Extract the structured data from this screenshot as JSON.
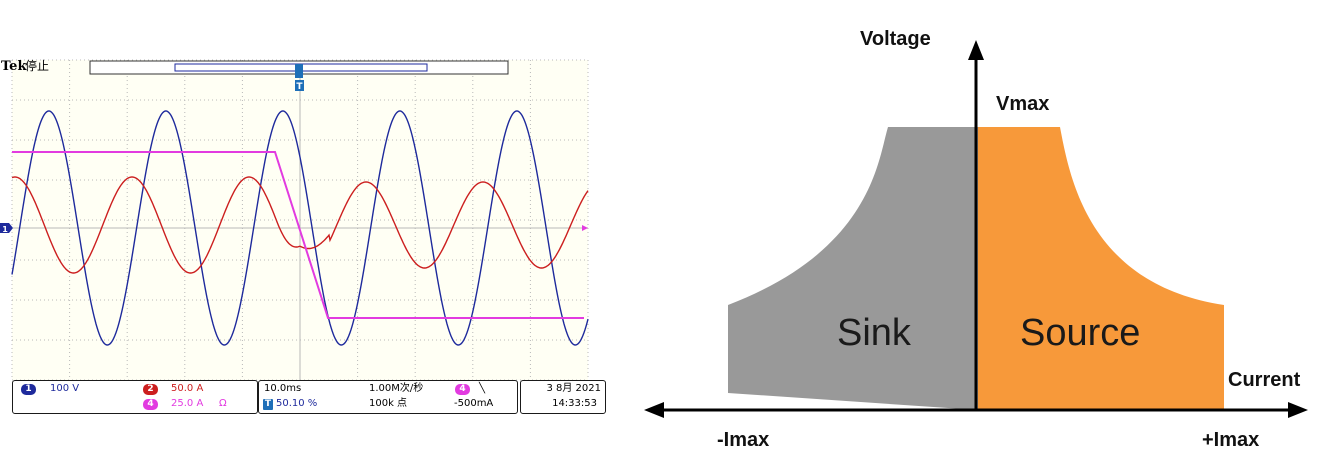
{
  "oscilloscope": {
    "brand": "Tek",
    "state": "停止",
    "colors": {
      "ch1": "#1e2a9c",
      "ch2": "#cc1f1f",
      "ch4": "#e23be0",
      "grid": "#b8b8b8",
      "bg": "#fffff4"
    },
    "ch1": {
      "number": "1",
      "scale": "100 V"
    },
    "ch2": {
      "number": "2",
      "scale": "50.0 A"
    },
    "ch4": {
      "number": "4",
      "scale": "25.0 A",
      "unit": "Ω"
    },
    "timebase": "10.0ms",
    "trigger_pos": "50.10 %",
    "sample_rate": "1.00M次/秒",
    "record_length": "100k 点",
    "trigger_ch": "4",
    "trigger_slope": "╲",
    "trigger_level": "-500mA",
    "date": "3 8月 2021",
    "time": "14:33:53",
    "trigger_marker": "T",
    "ch1_marker": "1"
  },
  "pd_chart": {
    "voltage_label": "Voltage",
    "vmax_label": "Vmax",
    "current_label": "Current",
    "neg_imax_label": "-Imax",
    "pos_imax_label": "+Imax",
    "sink_label": "Sink",
    "source_label": "Source",
    "colors": {
      "sink": "#999999",
      "source": "#f7993a",
      "axis": "#000000"
    }
  }
}
